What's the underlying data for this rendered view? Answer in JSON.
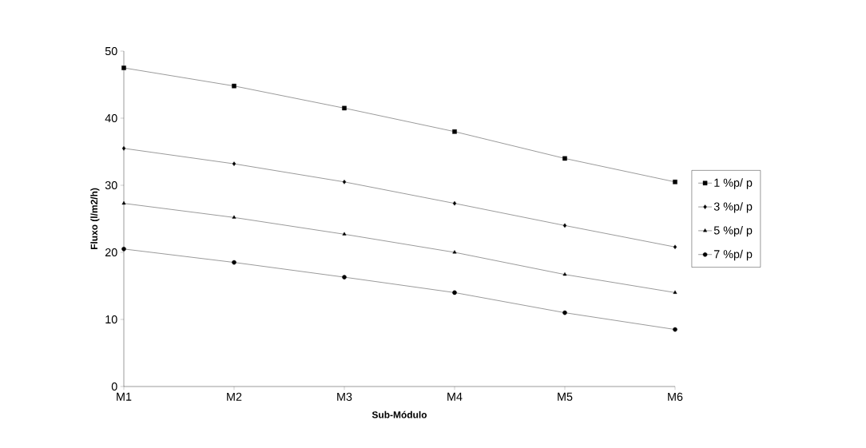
{
  "chart_data": {
    "type": "line",
    "xlabel": "Sub-Módulo",
    "ylabel": "Fluxo (l/m2/h)",
    "categories": [
      "M1",
      "M2",
      "M3",
      "M4",
      "M5",
      "M6"
    ],
    "series": [
      {
        "name": "1 %p/ p",
        "color": "#000000",
        "marker": "square",
        "values": [
          47.5,
          44.8,
          41.5,
          38,
          34,
          30.5
        ]
      },
      {
        "name": "3 %p/ p",
        "color": "#000000",
        "marker": "diamond",
        "values": [
          35.5,
          33.2,
          30.5,
          27.3,
          24,
          20.8
        ]
      },
      {
        "name": "5 %p/ p",
        "color": "#000000",
        "marker": "triangle",
        "values": [
          27.3,
          25.2,
          22.7,
          20,
          16.7,
          14
        ]
      },
      {
        "name": "7 %p/ p",
        "color": "#000000",
        "marker": "circle",
        "values": [
          20.5,
          18.5,
          16.3,
          14,
          11,
          8.5
        ]
      }
    ],
    "ylim": [
      0,
      50
    ],
    "yticks": [
      0,
      10,
      20,
      30,
      40,
      50
    ],
    "legend": "right",
    "line_style": "solid"
  }
}
